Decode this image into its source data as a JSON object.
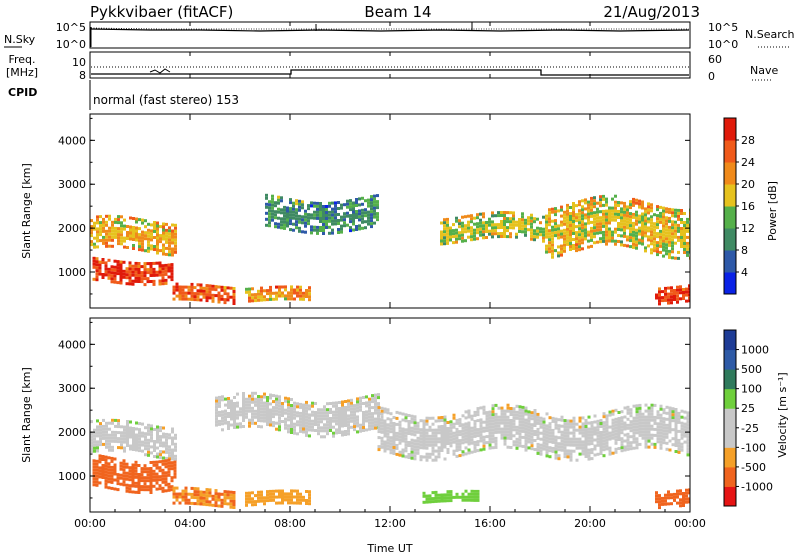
{
  "header": {
    "station": "Pykkvibaer (fitACF)",
    "beam": "Beam 14",
    "date": "21/Aug/2013"
  },
  "noise_panel": {
    "left_label": "N.Sky",
    "right_label": "N.Search",
    "left_ticks": [
      "10^5",
      "10^0"
    ],
    "right_ticks": [
      "10^5",
      "10^0"
    ]
  },
  "freq_panel": {
    "left_label_1": "Freq.",
    "left_label_2": "[MHz]",
    "left_ticks": [
      "10",
      "8"
    ],
    "right_label": "Nave",
    "right_ticks": [
      "60",
      "0"
    ]
  },
  "cpid": {
    "label": "CPID",
    "text": "normal (fast stereo) 153"
  },
  "colors": {
    "power_scale": [
      "#0a22e6",
      "#2e59a8",
      "#3f8a63",
      "#55b04a",
      "#e6c21e",
      "#f08a1a",
      "#f05a1a",
      "#e01a0a"
    ],
    "velocity_scale": [
      "#e61414",
      "#f0641e",
      "#f5a028",
      "#c8c8c8",
      "#c8c8c8",
      "#6fcf3c",
      "#2f7a5c",
      "#2e5aa6",
      "#1e3c96"
    ]
  },
  "chart_data": [
    {
      "type": "heatmap",
      "panel": "power",
      "ylabel": "Slant Range [km]",
      "ylim": [
        180,
        4600
      ],
      "yticks": [
        "1000",
        "2000",
        "3000",
        "4000"
      ],
      "xlim": [
        "00:00",
        "24:00"
      ],
      "colorbar": {
        "label": "Power [dB]",
        "range": [
          0,
          32
        ],
        "ticks": [
          "28",
          "24",
          "20",
          "16",
          "12",
          "8",
          "4"
        ]
      },
      "echo_regions_approx": [
        {
          "t_start_h": 0.0,
          "t_end_h": 3.4,
          "range_km": [
            1500,
            2200
          ],
          "power_db": 20
        },
        {
          "t_start_h": 0.1,
          "t_end_h": 3.3,
          "range_km": [
            800,
            1300
          ],
          "power_db": 28
        },
        {
          "t_start_h": 3.3,
          "t_end_h": 5.8,
          "range_km": [
            300,
            700
          ],
          "power_db": 26
        },
        {
          "t_start_h": 6.2,
          "t_end_h": 8.8,
          "range_km": [
            350,
            650
          ],
          "power_db": 22
        },
        {
          "t_start_h": 7.0,
          "t_end_h": 11.5,
          "range_km": [
            2000,
            2700
          ],
          "power_db": 10
        },
        {
          "t_start_h": 14.0,
          "t_end_h": 18.2,
          "range_km": [
            1700,
            2300
          ],
          "power_db": 16
        },
        {
          "t_start_h": 18.2,
          "t_end_h": 24.0,
          "range_km": [
            1500,
            2600
          ],
          "power_db": 18
        },
        {
          "t_start_h": 22.6,
          "t_end_h": 24.0,
          "range_km": [
            300,
            700
          ],
          "power_db": 28
        }
      ]
    },
    {
      "type": "heatmap",
      "panel": "velocity",
      "ylabel": "Slant Range [km]",
      "ylim": [
        180,
        4600
      ],
      "yticks": [
        "1000",
        "2000",
        "3000",
        "4000"
      ],
      "xlabel": "Time UT",
      "xticks": [
        "00:00",
        "04:00",
        "08:00",
        "12:00",
        "16:00",
        "20:00",
        "00:00"
      ],
      "colorbar": {
        "label": "Velocity [m s⁻¹]",
        "ticks": [
          "1000",
          "500",
          "100",
          "25",
          "-25",
          "-100",
          "-500",
          "-1000"
        ]
      },
      "echo_regions_approx": [
        {
          "t_start_h": 0.0,
          "t_end_h": 3.4,
          "range_km": [
            1500,
            2200
          ],
          "velocity_ms": 0
        },
        {
          "t_start_h": 0.1,
          "t_end_h": 3.4,
          "range_km": [
            700,
            1450
          ],
          "velocity_ms": -400
        },
        {
          "t_start_h": 3.3,
          "t_end_h": 5.8,
          "range_km": [
            300,
            700
          ],
          "velocity_ms": -300
        },
        {
          "t_start_h": 6.2,
          "t_end_h": 8.8,
          "range_km": [
            350,
            650
          ],
          "velocity_ms": -200
        },
        {
          "t_start_h": 5.0,
          "t_end_h": 11.5,
          "range_km": [
            2000,
            2800
          ],
          "velocity_ms": 0
        },
        {
          "t_start_h": 11.5,
          "t_end_h": 24.0,
          "range_km": [
            1500,
            2500
          ],
          "velocity_ms": 0
        },
        {
          "t_start_h": 13.3,
          "t_end_h": 15.5,
          "range_km": [
            400,
            650
          ],
          "velocity_ms": 150
        },
        {
          "t_start_h": 22.6,
          "t_end_h": 24.0,
          "range_km": [
            350,
            700
          ],
          "velocity_ms": -600
        }
      ]
    }
  ]
}
